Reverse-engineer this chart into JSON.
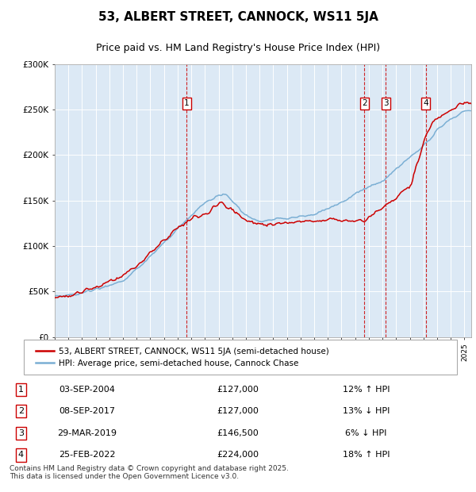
{
  "title": "53, ALBERT STREET, CANNOCK, WS11 5JA",
  "subtitle": "Price paid vs. HM Land Registry's House Price Index (HPI)",
  "footer": "Contains HM Land Registry data © Crown copyright and database right 2025.\nThis data is licensed under the Open Government Licence v3.0.",
  "legend_entries": [
    "53, ALBERT STREET, CANNOCK, WS11 5JA (semi-detached house)",
    "HPI: Average price, semi-detached house, Cannock Chase"
  ],
  "transactions": [
    {
      "num": 1,
      "date": "03-SEP-2004",
      "price": "£127,000",
      "hpi": "12% ↑ HPI",
      "year": 2004.67
    },
    {
      "num": 2,
      "date": "08-SEP-2017",
      "price": "£127,000",
      "hpi": "13% ↓ HPI",
      "year": 2017.67
    },
    {
      "num": 3,
      "date": "29-MAR-2019",
      "price": "£146,500",
      "hpi": "6% ↓ HPI",
      "year": 2019.25
    },
    {
      "num": 4,
      "date": "25-FEB-2022",
      "price": "£224,000",
      "hpi": "18% ↑ HPI",
      "year": 2022.17
    }
  ],
  "price_line_color": "#cc0000",
  "hpi_line_color": "#7bafd4",
  "plot_bg": "#dce9f5",
  "grid_color": "#ffffff",
  "marker_line_color": "#cc0000",
  "ylim": [
    0,
    300000
  ],
  "yticks": [
    0,
    50000,
    100000,
    150000,
    200000,
    250000,
    300000
  ],
  "ytick_labels": [
    "£0",
    "£50K",
    "£100K",
    "£150K",
    "£200K",
    "£250K",
    "£300K"
  ],
  "xstart": 1995,
  "xend": 2025.5
}
